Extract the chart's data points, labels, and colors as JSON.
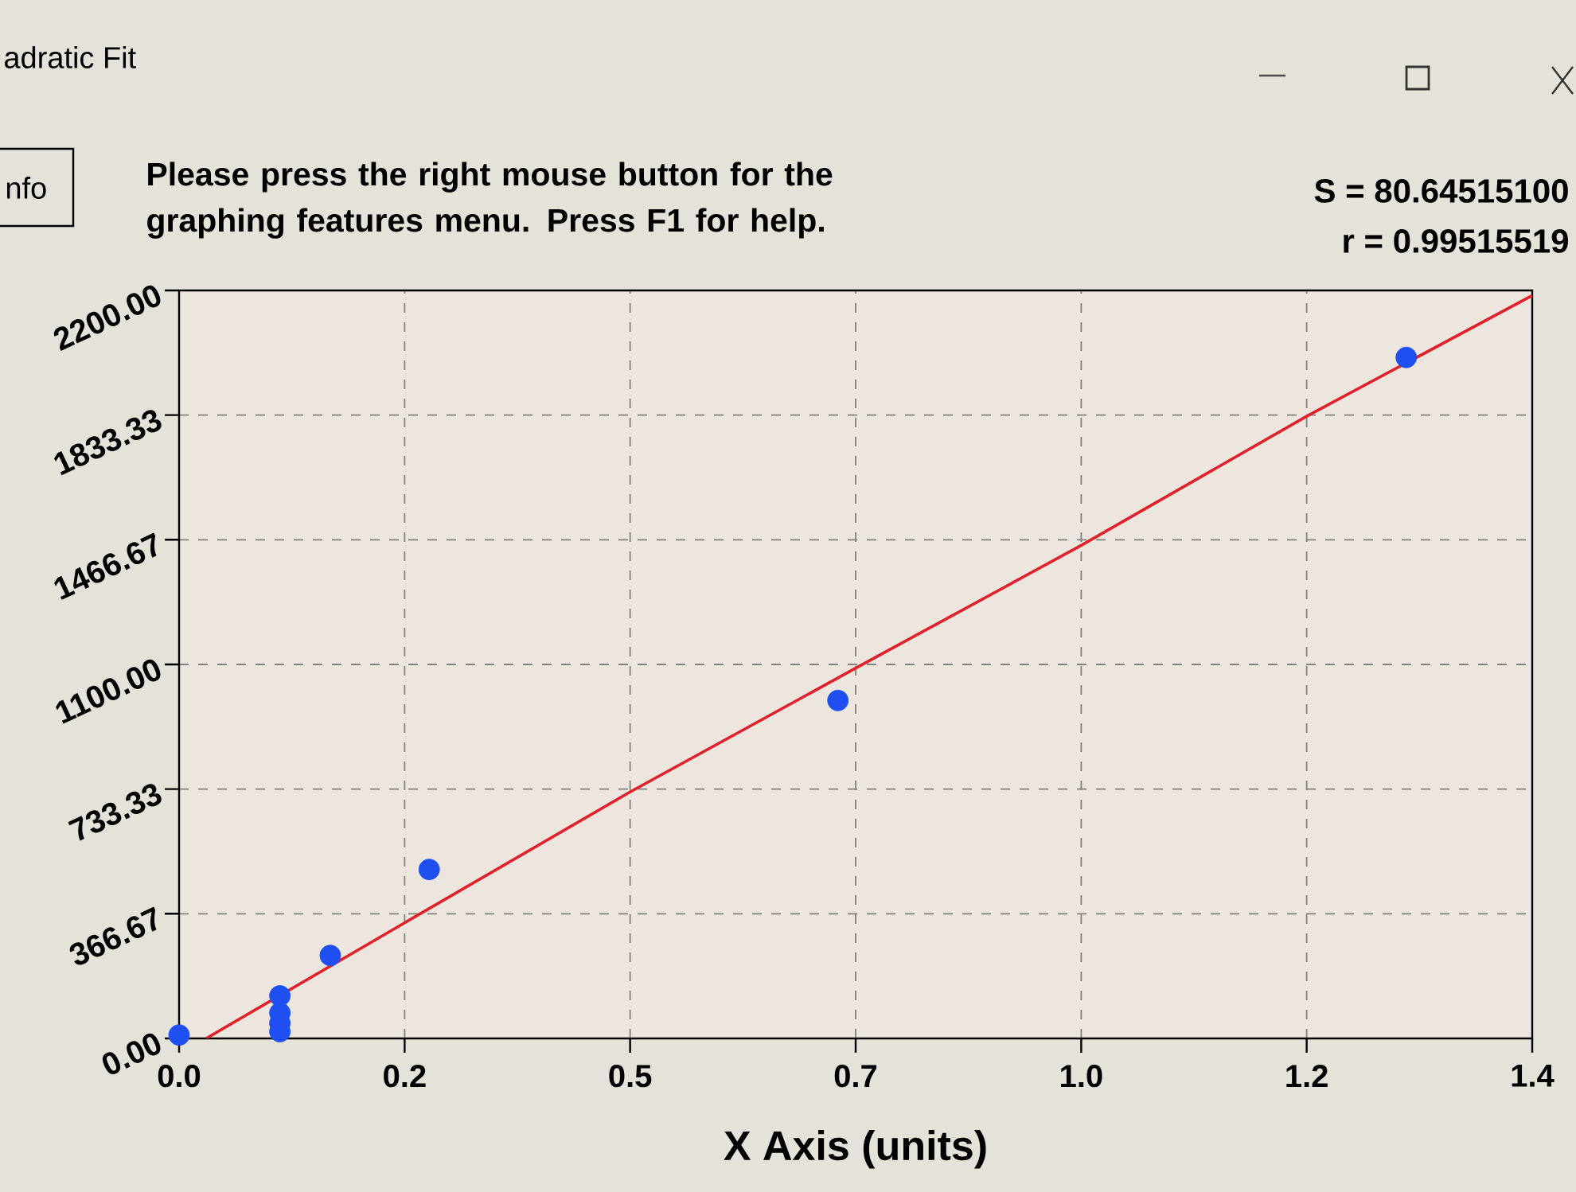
{
  "chart_data": {
    "type": "scatter",
    "title": "adratic Fit",
    "xlabel": "X Axis (units)",
    "annotations": [
      "nfo",
      "Please press the right mouse button for the graphing features menu.  Press F1 for help.",
      "S = 80.64515100",
      "r = 0.99515519"
    ],
    "series": [
      {
        "color": "#1f4ff0",
        "marker": "circle",
        "x": [
          0.0,
          0.108,
          0.108,
          0.108,
          0.108,
          0.162,
          0.268,
          0.706,
          1.315
        ],
        "values": [
          10,
          20,
          45,
          75,
          125,
          244,
          497,
          994,
          2003
        ]
      },
      {
        "type": "line",
        "color": "#e0202a",
        "marker": "none",
        "x": [
          0.029,
          0.2417,
          0.4833,
          0.725,
          0.9667,
          1.2083,
          1.45
        ],
        "values": [
          0,
          340,
          725,
          1089,
          1450,
          1830,
          2185
        ]
      }
    ],
    "xlim": [
      0,
      1.45
    ],
    "ylim": [
      0,
      2200
    ],
    "xticks": [
      {
        "value": 0,
        "label": "0.0"
      },
      {
        "value": 0.2417,
        "label": "0.2"
      },
      {
        "value": 0.4833,
        "label": "0.5"
      },
      {
        "value": 0.725,
        "label": "0.7"
      },
      {
        "value": 0.9667,
        "label": "1.0"
      },
      {
        "value": 1.2083,
        "label": "1.2"
      },
      {
        "value": 1.45,
        "label": "1.4"
      }
    ],
    "yticks": [
      {
        "value": 0,
        "label": "0.00"
      },
      366.67,
      733.33,
      {
        "value": 1100,
        "label": "1100.00"
      },
      1466.67,
      1833.33,
      {
        "value": 2200,
        "label": "2200.00"
      }
    ],
    "grid": true
  }
}
